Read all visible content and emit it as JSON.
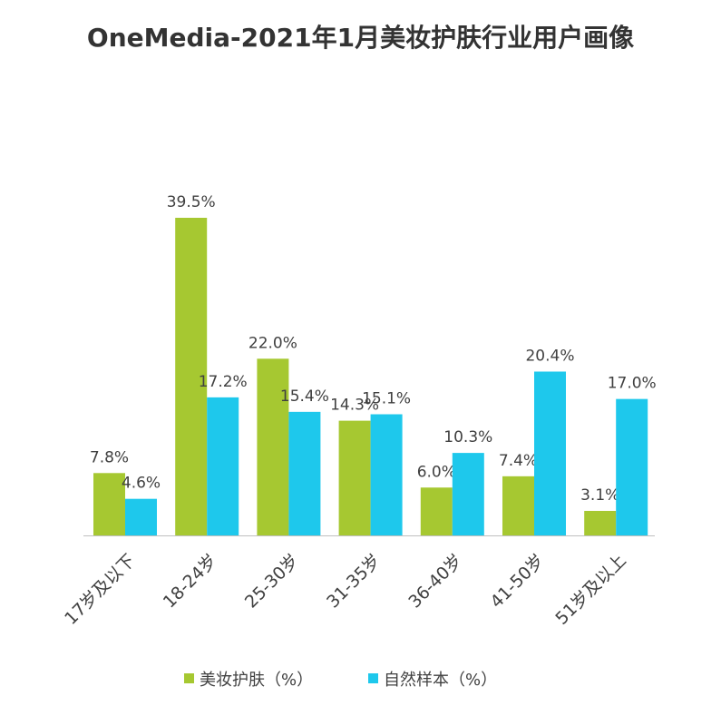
{
  "chart_data": {
    "type": "bar",
    "title": "OneMedia-2021年1月美妆护肤行业用户画像",
    "categories": [
      "17岁及以下",
      "18-24岁",
      "25-30岁",
      "31-35岁",
      "36-40岁",
      "41-50岁",
      "51岁及以上"
    ],
    "series": [
      {
        "name": "美妆护肤（%）",
        "color": "#a6c831",
        "values": [
          7.8,
          39.5,
          22.0,
          14.3,
          6.0,
          7.4,
          3.1
        ],
        "labels": [
          "7.8%",
          "39.5%",
          "22.0%",
          "14.3%",
          "6.0%",
          "7.4%",
          "3.1%"
        ]
      },
      {
        "name": "自然样本（%）",
        "color": "#1ec8ec",
        "values": [
          4.6,
          17.2,
          15.4,
          15.1,
          10.3,
          20.4,
          17.0
        ],
        "labels": [
          "4.6%",
          "17.2%",
          "15.4%",
          "15.1%",
          "10.3%",
          "20.4%",
          "17.0%"
        ]
      }
    ],
    "ylim": [
      0,
      40
    ],
    "grid": false,
    "legend_position": "bottom",
    "xlabel": "",
    "ylabel": ""
  }
}
